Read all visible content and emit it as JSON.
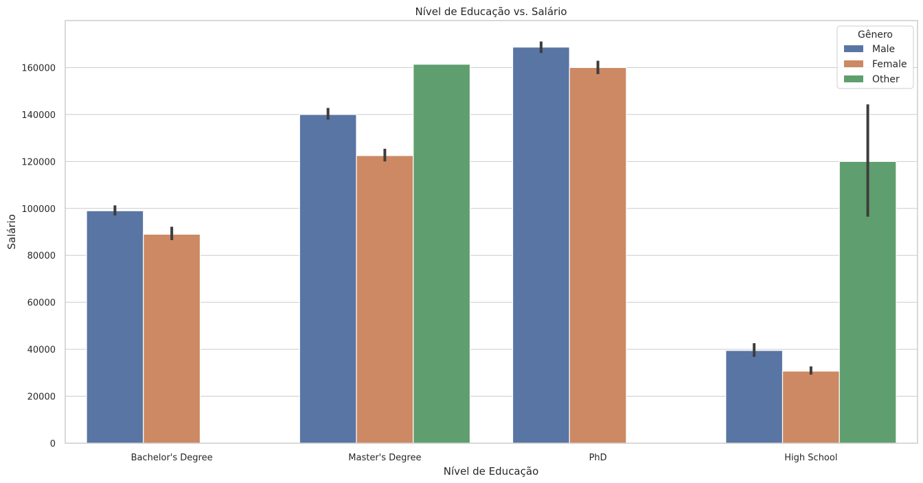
{
  "chart_data": {
    "type": "bar",
    "title": "Nível de Educação vs. Salário",
    "xlabel": "Nível de Educação",
    "ylabel": "Salário",
    "categories": [
      "Bachelor's Degree",
      "Master's Degree",
      "PhD",
      "High School"
    ],
    "ylim": [
      0,
      180000
    ],
    "yticks": [
      0,
      20000,
      40000,
      60000,
      80000,
      100000,
      120000,
      140000,
      160000
    ],
    "grid": "horizontal",
    "legend": {
      "title": "Gênero",
      "placement": "top-right"
    },
    "series": [
      {
        "name": "Male",
        "color": "#5975a4",
        "values": [
          99000,
          140000,
          168700,
          39500
        ],
        "error_low": [
          97000,
          137800,
          166200,
          36800
        ],
        "error_high": [
          101300,
          142800,
          171100,
          42600
        ]
      },
      {
        "name": "Female",
        "color": "#cc8963",
        "values": [
          89000,
          122500,
          160000,
          30700
        ],
        "error_low": [
          86500,
          120000,
          157200,
          29200
        ],
        "error_high": [
          92200,
          125400,
          162900,
          32700
        ]
      },
      {
        "name": "Other",
        "color": "#5f9e6e",
        "values": [
          null,
          161400,
          null,
          120000
        ],
        "error_low": [
          null,
          null,
          null,
          96500
        ],
        "error_high": [
          null,
          null,
          null,
          144300
        ]
      }
    ]
  }
}
